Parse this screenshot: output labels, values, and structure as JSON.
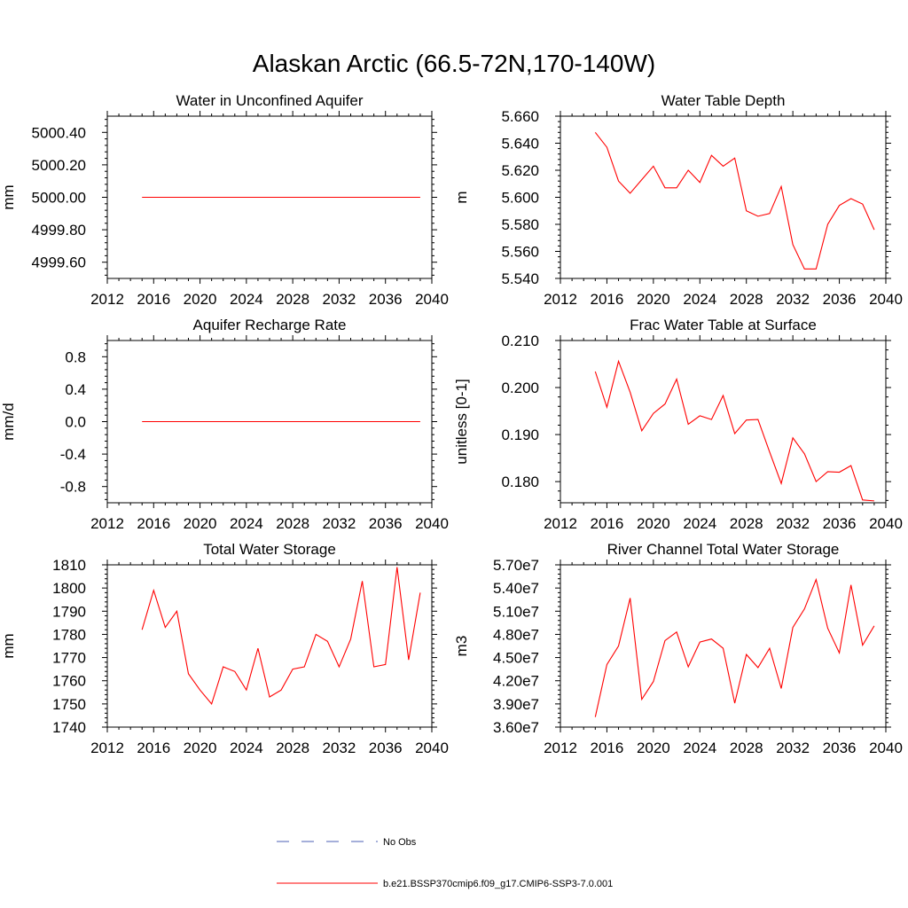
{
  "title": "Alaskan Arctic (66.5-72N,170-140W)",
  "chart_data": [
    {
      "type": "line",
      "title": "Water in Unconfined Aquifer",
      "xlabel": "",
      "ylabel": "mm",
      "xlim": [
        2012,
        2040
      ],
      "ylim": [
        4999.5,
        5000.5
      ],
      "xticks": [
        2012,
        2016,
        2020,
        2024,
        2028,
        2032,
        2036,
        2040
      ],
      "yticks": [
        4999.6,
        4999.8,
        5000.0,
        5000.2,
        5000.4
      ],
      "ytick_labels": [
        "4999.60",
        "4999.80",
        "5000.00",
        "5000.20",
        "5000.40"
      ],
      "series": [
        {
          "color": "#ff0000",
          "x": [
            2015,
            2016,
            2017,
            2018,
            2019,
            2020,
            2021,
            2022,
            2023,
            2024,
            2025,
            2026,
            2027,
            2028,
            2029,
            2030,
            2031,
            2032,
            2033,
            2034,
            2035,
            2036,
            2037,
            2038,
            2039
          ],
          "y": [
            5000.0,
            5000.0,
            5000.0,
            5000.0,
            5000.0,
            5000.0,
            5000.0,
            5000.0,
            5000.0,
            5000.0,
            5000.0,
            5000.0,
            5000.0,
            5000.0,
            5000.0,
            5000.0,
            5000.0,
            5000.0,
            5000.0,
            5000.0,
            5000.0,
            5000.0,
            5000.0,
            5000.0,
            5000.0
          ]
        }
      ]
    },
    {
      "type": "line",
      "title": "Water Table Depth",
      "xlabel": "",
      "ylabel": "m",
      "xlim": [
        2012,
        2040
      ],
      "ylim": [
        5.54,
        5.66
      ],
      "xticks": [
        2012,
        2016,
        2020,
        2024,
        2028,
        2032,
        2036,
        2040
      ],
      "yticks": [
        5.54,
        5.56,
        5.58,
        5.6,
        5.62,
        5.64,
        5.66
      ],
      "ytick_labels": [
        "5.540",
        "5.560",
        "5.580",
        "5.600",
        "5.620",
        "5.640",
        "5.660"
      ],
      "series": [
        {
          "color": "#ff0000",
          "x": [
            2015,
            2016,
            2017,
            2018,
            2019,
            2020,
            2021,
            2022,
            2023,
            2024,
            2025,
            2026,
            2027,
            2028,
            2029,
            2030,
            2031,
            2032,
            2033,
            2034,
            2035,
            2036,
            2037,
            2038,
            2039
          ],
          "y": [
            5.648,
            5.637,
            5.612,
            5.603,
            5.613,
            5.623,
            5.607,
            5.607,
            5.62,
            5.611,
            5.631,
            5.623,
            5.629,
            5.59,
            5.586,
            5.588,
            5.608,
            5.565,
            5.547,
            5.547,
            5.58,
            5.594,
            5.599,
            5.595,
            5.576
          ]
        }
      ]
    },
    {
      "type": "line",
      "title": "Aquifer Recharge Rate",
      "xlabel": "",
      "ylabel": "mm/d",
      "xlim": [
        2012,
        2040
      ],
      "ylim": [
        -1.0,
        1.0
      ],
      "xticks": [
        2012,
        2016,
        2020,
        2024,
        2028,
        2032,
        2036,
        2040
      ],
      "yticks": [
        -0.8,
        -0.4,
        0.0,
        0.4,
        0.8
      ],
      "ytick_labels": [
        "-0.8",
        "-0.4",
        "0.0",
        "0.4",
        "0.8"
      ],
      "series": [
        {
          "color": "#ff0000",
          "x": [
            2015,
            2016,
            2017,
            2018,
            2019,
            2020,
            2021,
            2022,
            2023,
            2024,
            2025,
            2026,
            2027,
            2028,
            2029,
            2030,
            2031,
            2032,
            2033,
            2034,
            2035,
            2036,
            2037,
            2038,
            2039
          ],
          "y": [
            0.0,
            0.0,
            0.0,
            0.0,
            0.0,
            0.0,
            0.0,
            0.0,
            0.0,
            0.0,
            0.0,
            0.0,
            0.0,
            0.0,
            0.0,
            0.0,
            0.0,
            0.0,
            0.0,
            0.0,
            0.0,
            0.0,
            0.0,
            0.0,
            0.0
          ]
        }
      ]
    },
    {
      "type": "line",
      "title": "Frac Water Table at Surface",
      "xlabel": "",
      "ylabel": "unitless [0-1]",
      "xlim": [
        2012,
        2040
      ],
      "ylim": [
        0.1755,
        0.21
      ],
      "xticks": [
        2012,
        2016,
        2020,
        2024,
        2028,
        2032,
        2036,
        2040
      ],
      "yticks": [
        0.18,
        0.19,
        0.2,
        0.21
      ],
      "ytick_labels": [
        "0.180",
        "0.190",
        "0.200",
        "0.210"
      ],
      "series": [
        {
          "color": "#ff0000",
          "x": [
            2015,
            2016,
            2017,
            2018,
            2019,
            2020,
            2021,
            2022,
            2023,
            2024,
            2025,
            2026,
            2027,
            2028,
            2029,
            2030,
            2031,
            2032,
            2033,
            2034,
            2035,
            2036,
            2037,
            2038,
            2039
          ],
          "y": [
            0.2034,
            0.1958,
            0.2056,
            0.199,
            0.1908,
            0.1945,
            0.1965,
            0.2018,
            0.1922,
            0.194,
            0.1932,
            0.1983,
            0.1902,
            0.1931,
            0.1932,
            0.1863,
            0.1796,
            0.1893,
            0.1859,
            0.18,
            0.1821,
            0.182,
            0.1834,
            0.1761,
            0.1759
          ]
        }
      ]
    },
    {
      "type": "line",
      "title": "Total Water Storage",
      "xlabel": "",
      "ylabel": "mm",
      "xlim": [
        2012,
        2040
      ],
      "ylim": [
        1740,
        1810
      ],
      "xticks": [
        2012,
        2016,
        2020,
        2024,
        2028,
        2032,
        2036,
        2040
      ],
      "yticks": [
        1740,
        1750,
        1760,
        1770,
        1780,
        1790,
        1800,
        1810
      ],
      "ytick_labels": [
        "1740",
        "1750",
        "1760",
        "1770",
        "1780",
        "1790",
        "1800",
        "1810"
      ],
      "series": [
        {
          "color": "#ff0000",
          "x": [
            2015,
            2016,
            2017,
            2018,
            2019,
            2020,
            2021,
            2022,
            2023,
            2024,
            2025,
            2026,
            2027,
            2028,
            2029,
            2030,
            2031,
            2032,
            2033,
            2034,
            2035,
            2036,
            2037,
            2038,
            2039
          ],
          "y": [
            1782,
            1799,
            1783,
            1790,
            1763,
            1756,
            1750,
            1766,
            1764,
            1756,
            1774,
            1753,
            1756,
            1765,
            1766,
            1780,
            1777,
            1766,
            1778,
            1803,
            1766,
            1767,
            1809,
            1769,
            1798
          ]
        }
      ]
    },
    {
      "type": "line",
      "title": "River Channel Total Water Storage",
      "xlabel": "",
      "ylabel": "m3",
      "xlim": [
        2012,
        2040
      ],
      "ylim": [
        36000000,
        57000000
      ],
      "xticks": [
        2012,
        2016,
        2020,
        2024,
        2028,
        2032,
        2036,
        2040
      ],
      "yticks": [
        36000000,
        39000000,
        42000000,
        45000000,
        48000000,
        51000000,
        54000000,
        57000000
      ],
      "ytick_labels": [
        "3.60e7",
        "3.90e7",
        "4.20e7",
        "4.50e7",
        "4.80e7",
        "5.10e7",
        "5.40e7",
        "5.70e7"
      ],
      "series": [
        {
          "color": "#ff0000",
          "x": [
            2015,
            2016,
            2017,
            2018,
            2019,
            2020,
            2021,
            2022,
            2023,
            2024,
            2025,
            2026,
            2027,
            2028,
            2029,
            2030,
            2031,
            2032,
            2033,
            2034,
            2035,
            2036,
            2037,
            2038,
            2039
          ],
          "y": [
            37300000,
            44100000,
            46500000,
            52700000,
            39600000,
            41900000,
            47200000,
            48300000,
            43800000,
            47000000,
            47400000,
            46200000,
            39100000,
            45400000,
            43700000,
            46200000,
            41000000,
            48900000,
            51300000,
            55100000,
            48800000,
            45600000,
            54400000,
            46600000,
            49100000
          ]
        }
      ]
    }
  ],
  "legend": {
    "items": [
      {
        "label": "No Obs",
        "color": "#4b5fb4",
        "style": "dashed"
      },
      {
        "label": "b.e21.BSSP370cmip6.f09_g17.CMIP6-SSP3-7.0.001",
        "color": "#ff0000",
        "style": "solid"
      }
    ]
  }
}
